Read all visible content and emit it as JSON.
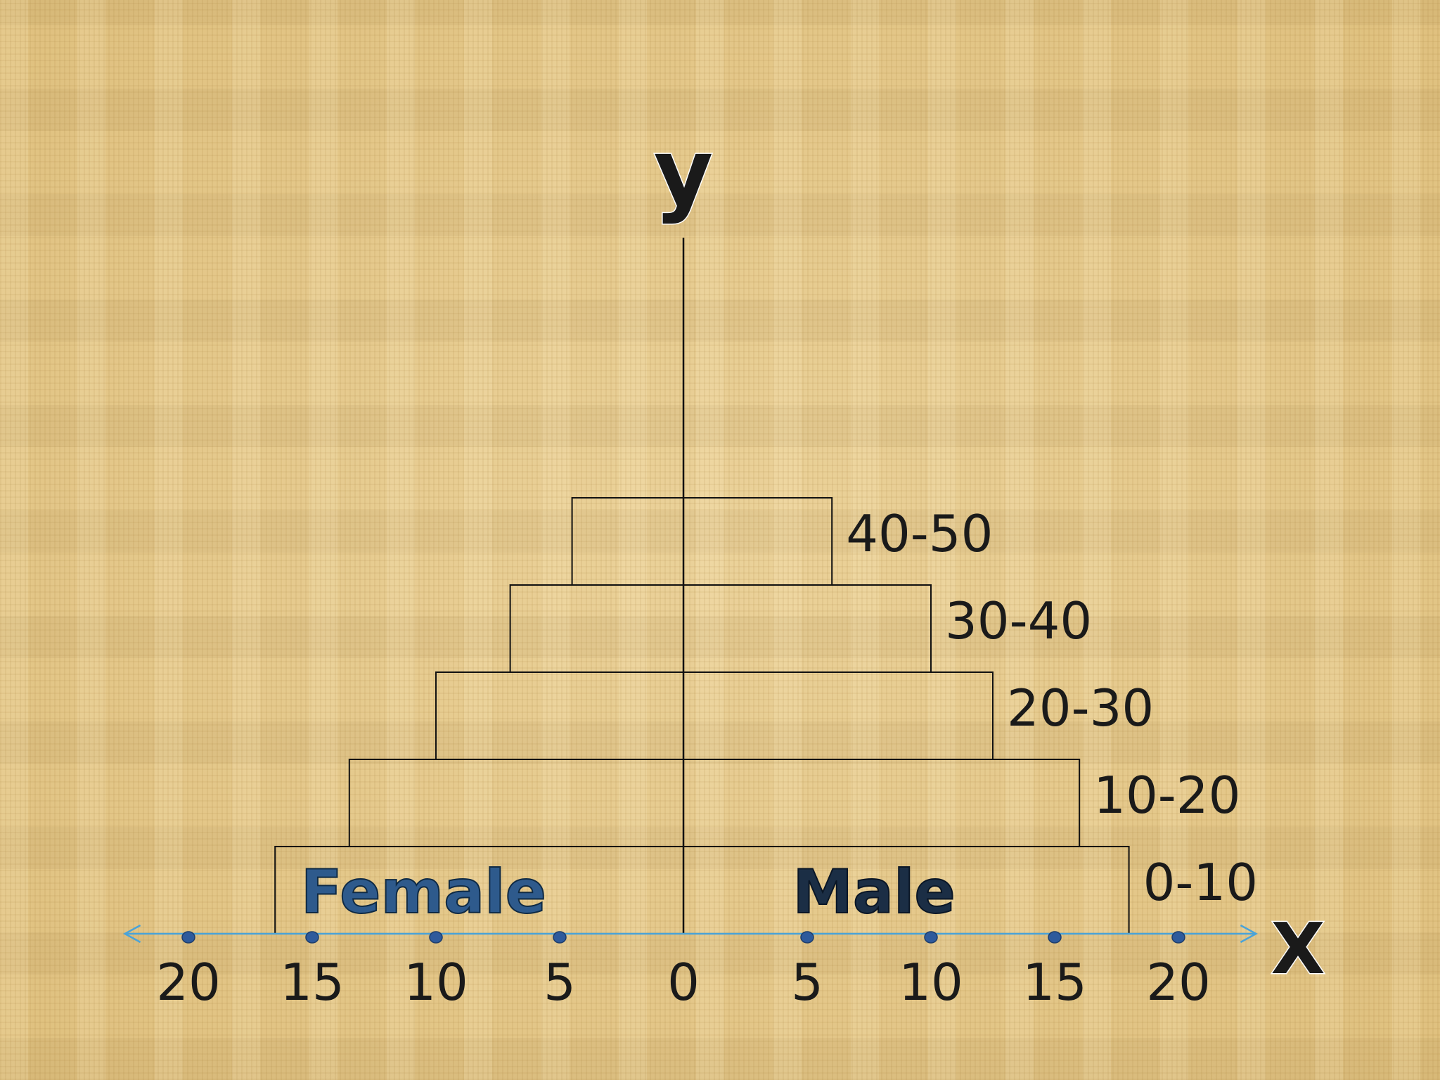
{
  "chart_data": {
    "type": "bar",
    "subtype": "population-pyramid",
    "x_axis_letter": "X",
    "y_axis_letter": "y",
    "x_ticks": [
      {
        "value": -20,
        "label": "20"
      },
      {
        "value": -15,
        "label": "15"
      },
      {
        "value": -10,
        "label": "10"
      },
      {
        "value": -5,
        "label": "5"
      },
      {
        "value": 0,
        "label": "0"
      },
      {
        "value": 5,
        "label": "5"
      },
      {
        "value": 10,
        "label": "10"
      },
      {
        "value": 15,
        "label": "15"
      },
      {
        "value": 20,
        "label": "20"
      }
    ],
    "xlim": [
      -22,
      22
    ],
    "side_labels": {
      "female": "Female",
      "male": "Male"
    },
    "categories": [
      "0-10",
      "10-20",
      "20-30",
      "30-40",
      "40-50"
    ],
    "series": [
      {
        "name": "Female",
        "values": [
          16.5,
          13.5,
          10,
          7,
          4.5
        ]
      },
      {
        "name": "Male",
        "values": [
          18,
          16,
          12.5,
          10,
          6
        ]
      }
    ],
    "colors": {
      "axis": "#4aa3d8",
      "outline": "#111111",
      "dot": "#2e5a9c"
    }
  }
}
